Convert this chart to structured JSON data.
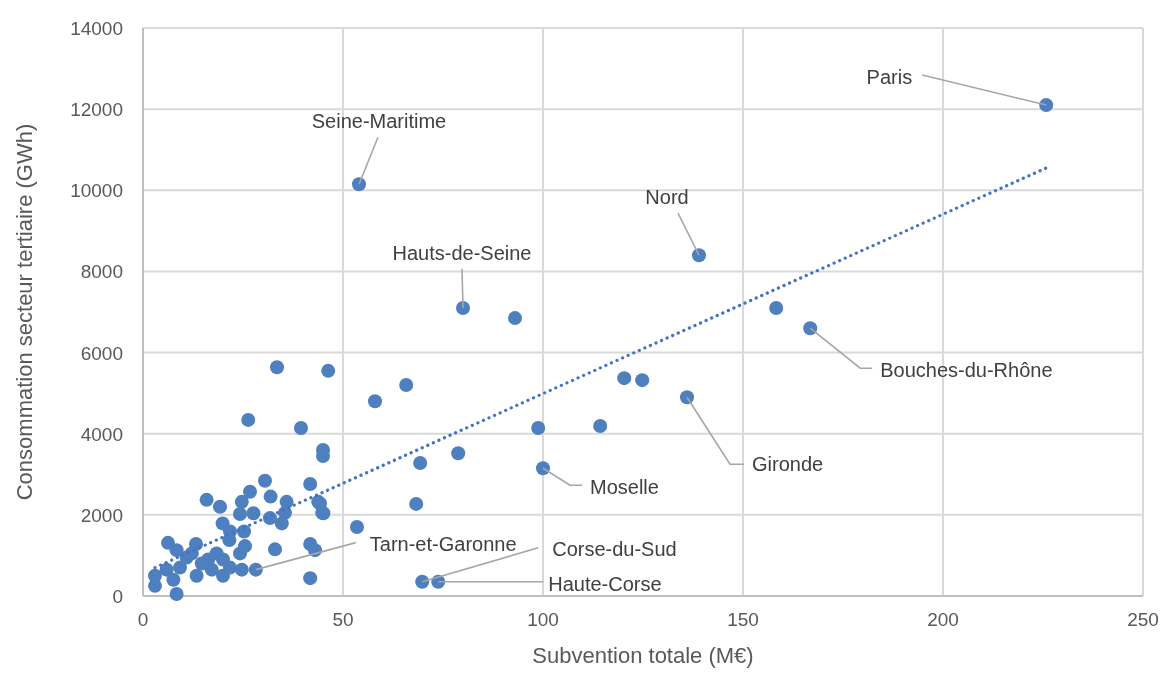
{
  "chart_data": {
    "type": "scatter",
    "xlabel": "Subvention totale (M€)",
    "ylabel": "Consommation secteur tertiaire (GWh)",
    "xlim": [
      0,
      250
    ],
    "xticks": [
      0,
      50,
      100,
      150,
      200,
      250
    ],
    "ylim": [
      0,
      14000
    ],
    "yticks": [
      0,
      2000,
      4000,
      6000,
      8000,
      10000,
      12000,
      14000
    ],
    "grid": true,
    "series": [
      {
        "marker": "circle",
        "color": "#4e7fbf",
        "x": [
          225.8,
          54,
          139,
          80,
          166.8,
          136,
          100,
          28.2,
          69.8,
          73.8,
          93,
          158.3,
          120.3,
          124.8,
          114.3,
          98.8,
          78.8,
          69.3,
          68.3,
          53.5,
          65.8,
          58,
          46.3,
          33.5,
          39.5,
          26.3,
          45,
          45,
          41.8,
          43.8,
          44.8,
          41.8,
          43,
          41.8,
          30.5,
          15.9,
          26.75,
          24.7,
          19.25,
          24.25,
          31.9,
          35.9,
          35.5,
          27.6,
          31.75,
          34.7,
          19.9,
          44.25,
          45.1,
          25.25,
          21.75,
          21.6,
          6.25,
          13.25,
          25.5,
          33,
          8.4,
          16.3,
          24.25,
          10.9,
          9.25,
          14.7,
          20,
          5.9,
          13.4,
          20,
          24.7,
          3,
          3,
          7.6,
          8.4,
          12.2,
          18.4,
          21.75,
          17.2
        ],
        "values": [
          12100,
          10150,
          8400,
          7100,
          6600,
          4900,
          3150,
          650,
          350,
          350,
          6850,
          7100,
          5370,
          5320,
          4190,
          4140,
          3520,
          3280,
          2270,
          1700,
          5200,
          4800,
          5550,
          5640,
          4140,
          4340,
          3600,
          3450,
          2760,
          2320,
          2050,
          1280,
          1130,
          440,
          2840,
          2370,
          2570,
          2320,
          2200,
          2020,
          2450,
          2320,
          2050,
          2040,
          1920,
          1790,
          1790,
          2280,
          2040,
          1590,
          1590,
          1380,
          1310,
          1280,
          1230,
          1150,
          1130,
          900,
          1050,
          950,
          700,
          800,
          900,
          650,
          500,
          500,
          650,
          500,
          250,
          400,
          50,
          1050,
          1050,
          700,
          650
        ]
      },
      {
        "type": "line",
        "color": "#4472c4",
        "line_style": "dotted",
        "x": [
          3,
          225.8
        ],
        "values": [
          700,
          10550
        ]
      }
    ],
    "annotations": [
      {
        "text": "Paris",
        "x": 225.8,
        "y": 12100
      },
      {
        "text": "Seine-Maritime",
        "x": 54,
        "y": 10150
      },
      {
        "text": "Nord",
        "x": 139,
        "y": 8400
      },
      {
        "text": "Hauts-de-Seine",
        "x": 80,
        "y": 7100
      },
      {
        "text": "Bouches-du-Rhône",
        "x": 166.8,
        "y": 6600
      },
      {
        "text": "Gironde",
        "x": 136,
        "y": 4900
      },
      {
        "text": "Moselle",
        "x": 100,
        "y": 3150
      },
      {
        "text": "Tarn-et-Garonne",
        "x": 28.2,
        "y": 650
      },
      {
        "text": "Corse-du-Sud",
        "x": 69.8,
        "y": 350
      },
      {
        "text": "Haute-Corse",
        "x": 73.8,
        "y": 350
      }
    ]
  }
}
